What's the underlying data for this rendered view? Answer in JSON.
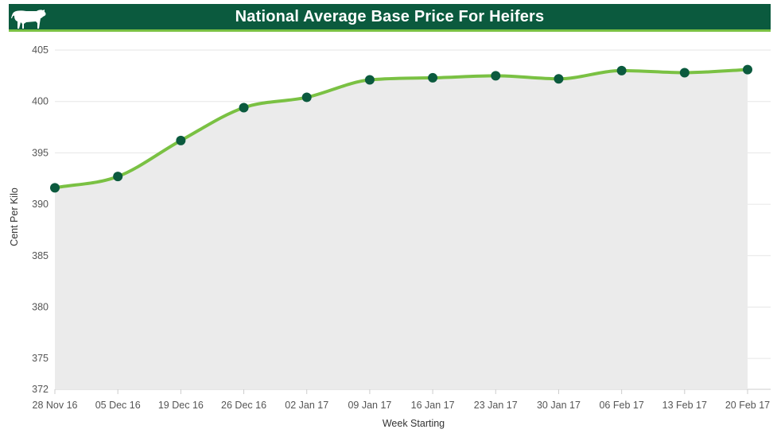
{
  "header": {
    "title": "National Average Base Price For Heifers",
    "icon": "cow-icon"
  },
  "colors": {
    "header_bg": "#0b5a3e",
    "header_underline": "#7ac143",
    "line": "#7ac143",
    "marker": "#0b5a3e",
    "area": "#ebebeb"
  },
  "chart_data": {
    "type": "line",
    "title": "National Average Base Price For Heifers",
    "xlabel": "Week Starting",
    "ylabel": "Cent Per Kilo",
    "ylim": [
      372,
      405
    ],
    "yticks": [
      372,
      375,
      380,
      385,
      390,
      395,
      400,
      405
    ],
    "grid": true,
    "categories": [
      "28 Nov 16",
      "05 Dec 16",
      "19 Dec 16",
      "26 Dec 16",
      "02 Jan 17",
      "09 Jan 17",
      "16 Jan 17",
      "23 Jan 17",
      "30 Jan 17",
      "06 Feb 17",
      "13 Feb 17",
      "20 Feb 17"
    ],
    "series": [
      {
        "values": [
          391.6,
          392.7,
          396.2,
          399.4,
          400.4,
          402.1,
          402.3,
          402.5,
          402.2,
          403.0,
          402.8,
          403.1
        ]
      }
    ]
  }
}
